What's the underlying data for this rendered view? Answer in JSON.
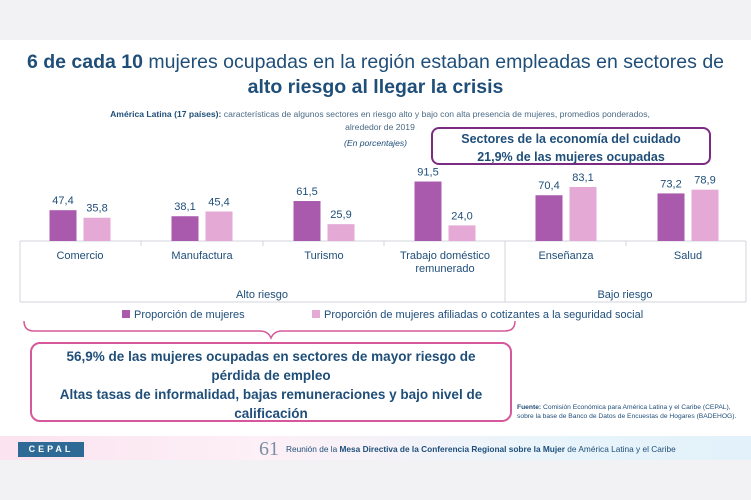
{
  "title": {
    "part1_bold": "6 de cada 10",
    "part1_rest": " mujeres ocupadas en la región estaban empleadas en sectores de",
    "part2_bold": "alto riesgo al llegar la crisis"
  },
  "subtitle": {
    "bold": "América Latina (17 países):",
    "rest": " características de algunos sectores en riesgo alto y bajo con alta presencia de mujeres, promedios ponderados,",
    "line2": "alrededor de 2019",
    "units": "(En porcentajes)"
  },
  "care_box": {
    "line1": "Sectores de la economía del cuidado",
    "line2": "21,9% de las mujeres ocupadas"
  },
  "risk_box": {
    "line1": "56,9% de las mujeres ocupadas en sectores de mayor riesgo de",
    "line2": "pérdida de empleo",
    "line3": "Altas tasas de informalidad, bajas remuneraciones y bajo nivel de",
    "line4": "calificación"
  },
  "source": {
    "label": "Fuente:",
    "text": " Comisión Económica para América Latina y el Caribe (CEPAL), sobre la base de Banco de Datos de Encuestas de Hogares (BADEHOG)."
  },
  "footer": {
    "logo": "CEPAL",
    "number": "61",
    "t1": "Reunión de la ",
    "b1": "Mesa Directiva de la Conferencia Regional sobre la Mujer",
    "t2": " de América Latina y el Caribe"
  },
  "colors": {
    "series_women": "#a95aad",
    "series_affiliated": "#e4a9d4",
    "title": "#1f4e79",
    "care_border": "#7b2c82",
    "risk_border": "#d6589a"
  },
  "chart_data": {
    "type": "bar",
    "categories": [
      "Comercio",
      "Manufactura",
      "Turismo",
      "Trabajo doméstico remunerado",
      "Enseñanza",
      "Salud"
    ],
    "category_lines": [
      [
        "Comercio"
      ],
      [
        "Manufactura"
      ],
      [
        "Turismo"
      ],
      [
        "Trabajo doméstico",
        "remunerado"
      ],
      [
        "Enseñanza"
      ],
      [
        "Salud"
      ]
    ],
    "groups": [
      {
        "label": "Alto riesgo",
        "categories": [
          "Comercio",
          "Manufactura",
          "Turismo",
          "Trabajo doméstico remunerado"
        ]
      },
      {
        "label": "Bajo riesgo",
        "categories": [
          "Enseñanza",
          "Salud"
        ]
      }
    ],
    "series": [
      {
        "name": "Proporción de mujeres",
        "values": [
          47.4,
          38.1,
          61.5,
          91.5,
          70.4,
          73.2
        ],
        "labels": [
          "47,4",
          "38,1",
          "61,5",
          "91,5",
          "70,4",
          "73,2"
        ]
      },
      {
        "name": "Proporción de mujeres afiliadas o cotizantes a la seguridad social",
        "values": [
          35.8,
          45.4,
          25.9,
          24.0,
          83.1,
          78.9
        ],
        "labels": [
          "35,8",
          "45,4",
          "25,9",
          "24,0",
          "83,1",
          "78,9"
        ]
      }
    ],
    "ylim": [
      0,
      100
    ],
    "legend": "bottom"
  }
}
